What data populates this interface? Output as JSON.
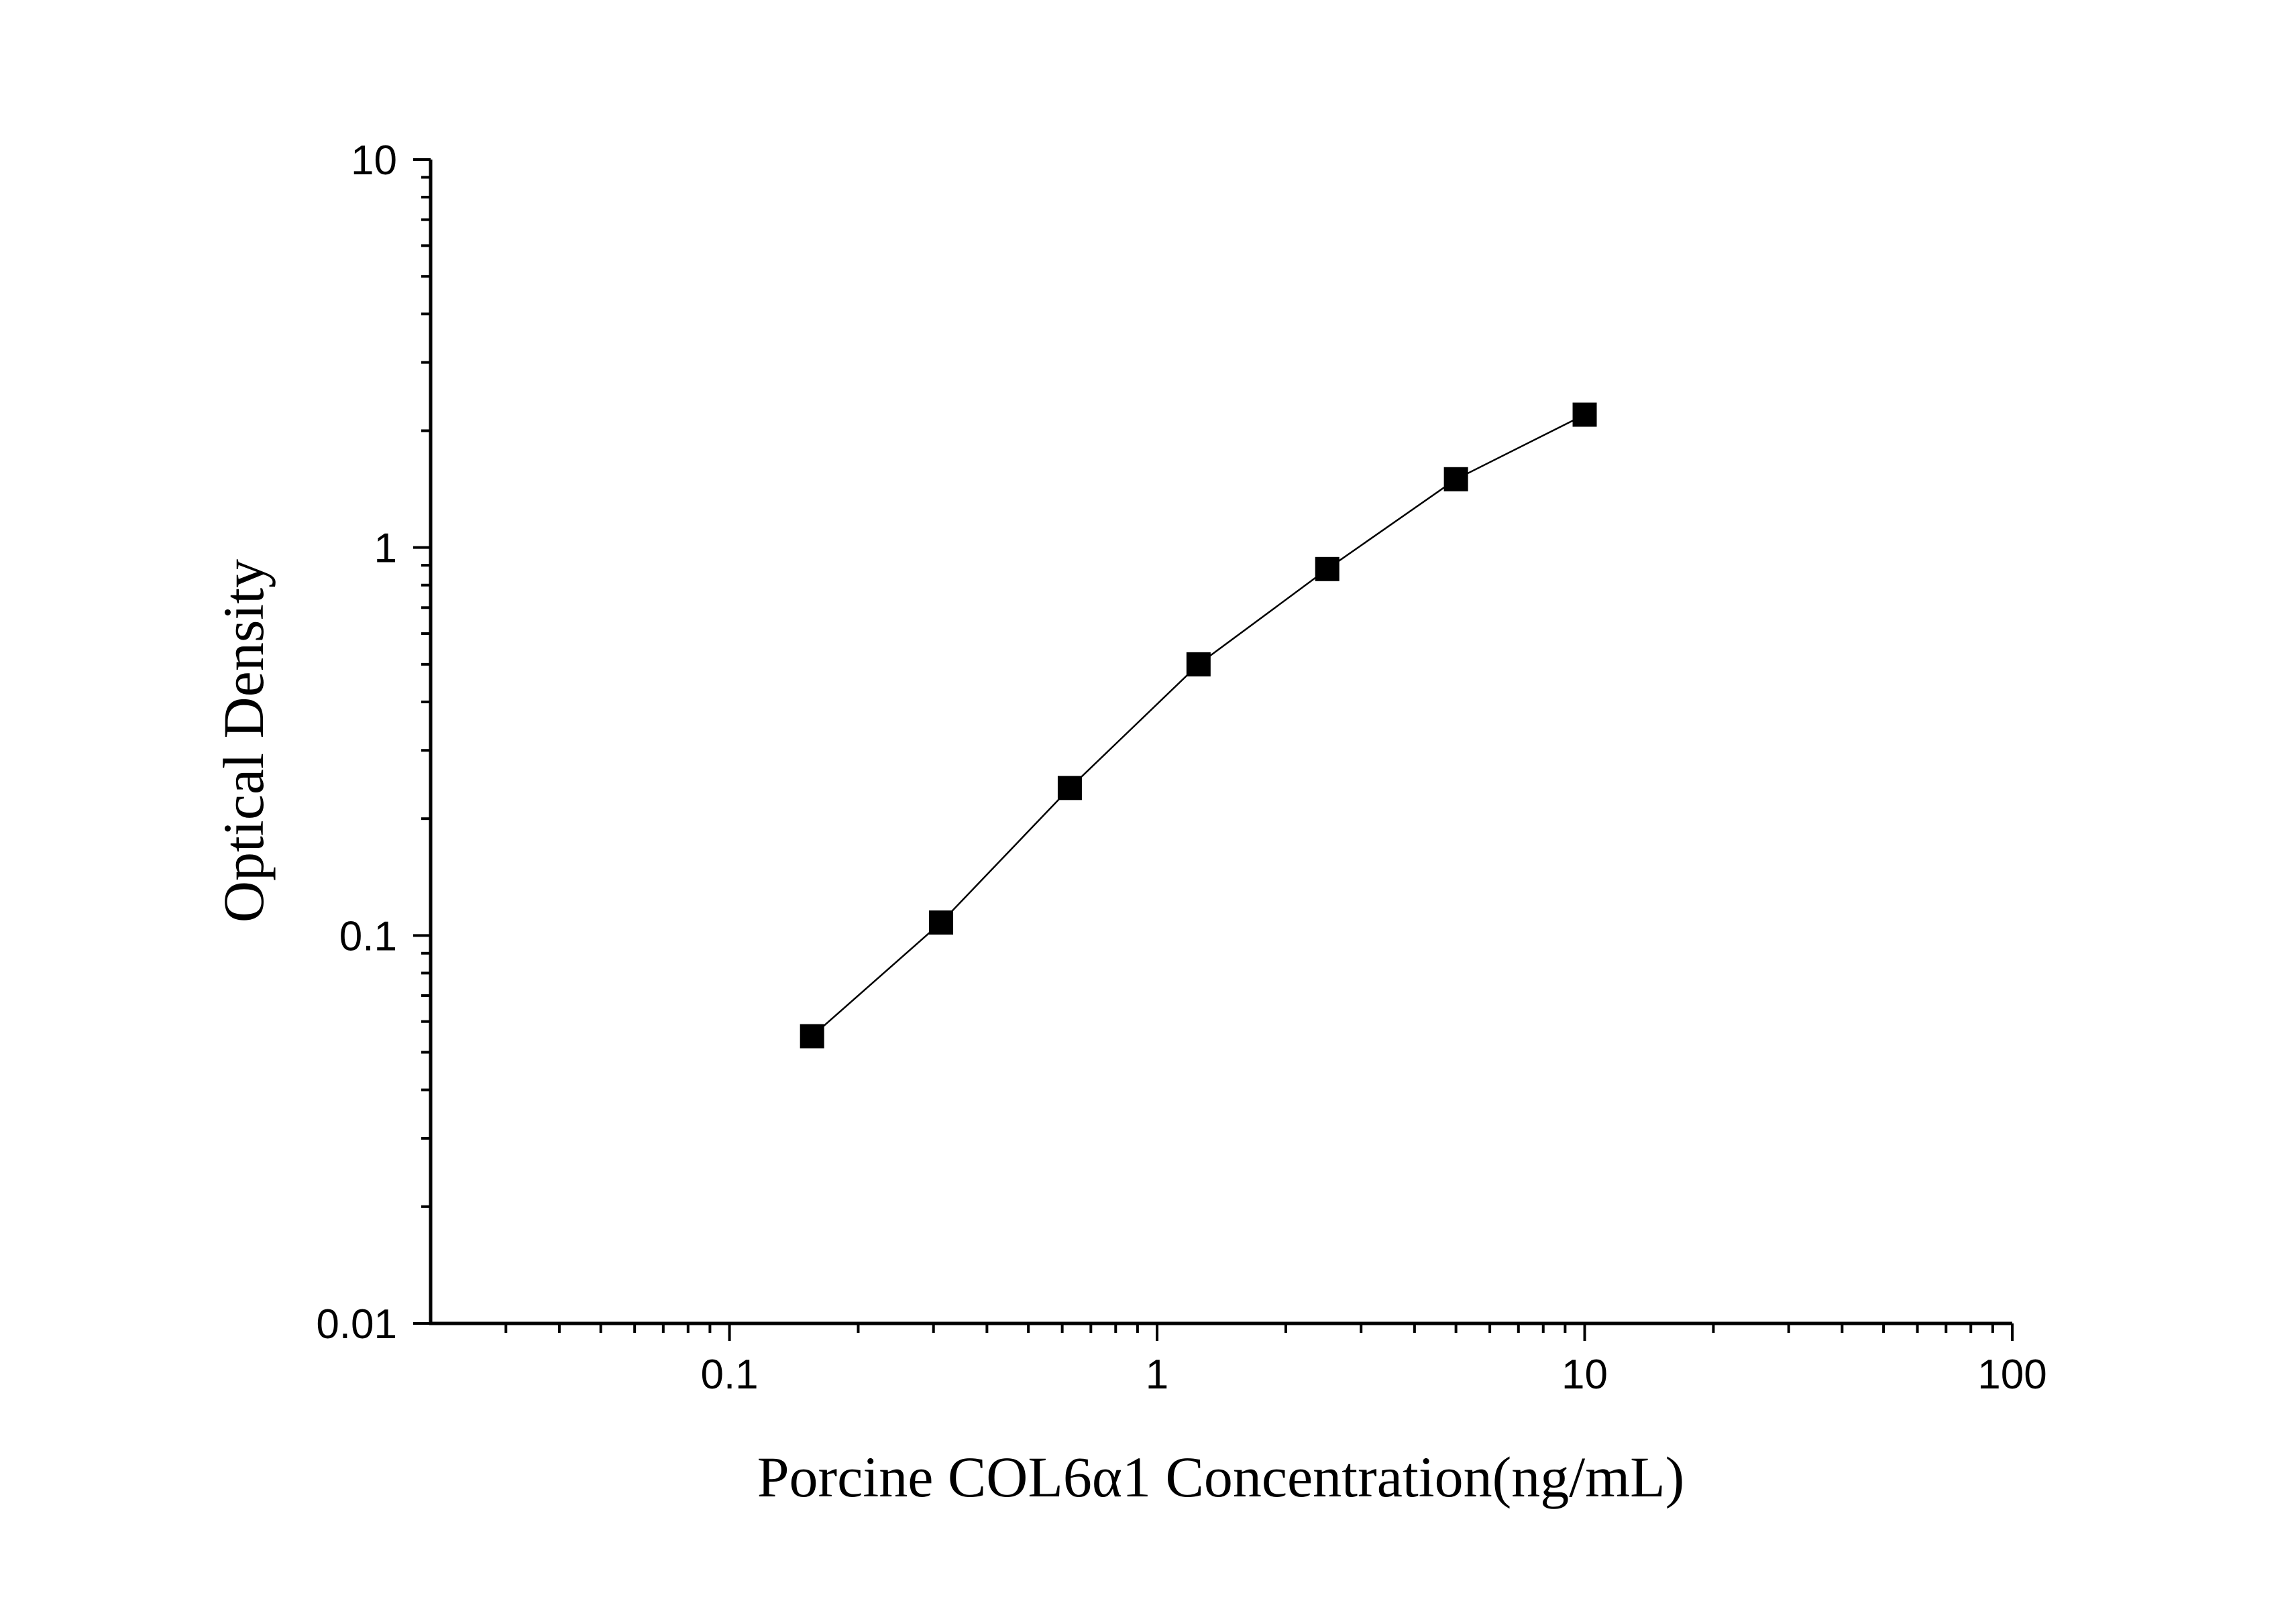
{
  "chart_data": {
    "type": "line",
    "x_label": "Porcine COL6α1 Concentration(ng/mL)",
    "y_label": "Optical Density",
    "x_log": true,
    "y_log": true,
    "xlim": [
      0.02,
      100
    ],
    "ylim": [
      0.01,
      10
    ],
    "xticks": [
      0.1,
      1,
      10,
      100
    ],
    "yticks": [
      0.01,
      0.1,
      1,
      10
    ],
    "xminor_ticks": [
      0.03,
      0.04,
      0.05,
      0.06,
      0.07,
      0.08,
      0.09,
      0.2,
      0.3,
      0.4,
      0.5,
      0.6,
      0.7,
      0.8,
      0.9,
      2,
      3,
      4,
      5,
      6,
      7,
      8,
      9,
      20,
      30,
      40,
      50,
      60,
      70,
      80,
      90
    ],
    "yminor_ticks": [
      0.02,
      0.03,
      0.04,
      0.05,
      0.06,
      0.07,
      0.08,
      0.09,
      0.2,
      0.3,
      0.4,
      0.5,
      0.6,
      0.7,
      0.8,
      0.9,
      2,
      3,
      4,
      5,
      6,
      7,
      8,
      9
    ],
    "series": [
      {
        "color": "#000000",
        "marker": "square",
        "x": [
          0.156,
          0.3125,
          0.625,
          1.25,
          2.5,
          5,
          10
        ],
        "values": [
          0.055,
          0.108,
          0.24,
          0.5,
          0.88,
          1.5,
          2.2
        ]
      }
    ]
  }
}
